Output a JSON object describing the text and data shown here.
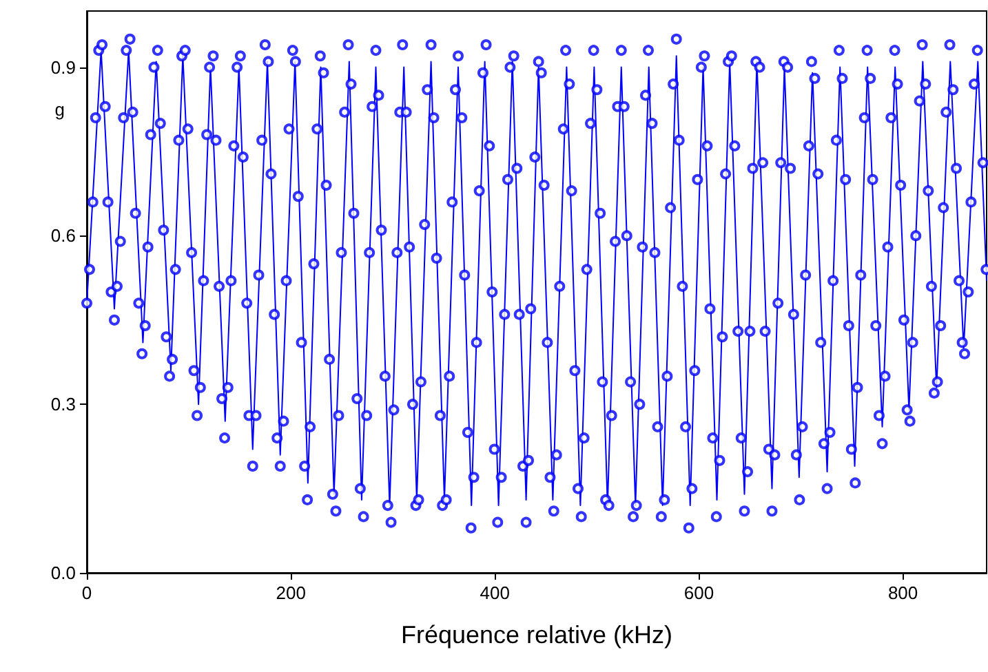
{
  "chart_data": {
    "type": "scatter",
    "xlabel": "Fréquence relative (kHz)",
    "ylabel": "g",
    "xlim": [
      0,
      882
    ],
    "xticks": [
      0,
      200,
      400,
      600,
      800
    ],
    "ylim": [
      0,
      1.0
    ],
    "yticks": [
      {
        "value": 0,
        "label": "0.0"
      },
      0.3,
      0.6,
      0.9
    ],
    "grid": false,
    "series": [
      {
        "type": "scatter",
        "color": "#0000ff",
        "marker": "circle",
        "x": [
          0,
          2.7,
          5.9,
          8.6,
          11.7,
          14.9,
          18.0,
          20.7,
          23.9,
          27.0,
          29.7,
          32.9,
          36.0,
          38.7,
          42.3,
          45.0,
          47.7,
          50.9,
          54.1,
          57.2,
          59.9,
          62.6,
          65.8,
          69.4,
          72.1,
          75.2,
          77.9,
          81.1,
          83.8,
          86.9,
          90.1,
          93.2,
          96.4,
          99.1,
          102.7,
          105.0,
          108.1,
          111.3,
          114.4,
          117.6,
          120.3,
          123.9,
          126.6,
          129.7,
          132.4,
          135.1,
          138.3,
          141.4,
          144.1,
          147.3,
          150.5,
          153.2,
          156.8,
          159.0,
          162.6,
          165.8,
          168.5,
          171.6,
          174.8,
          177.9,
          180.6,
          183.8,
          186.5,
          189.6,
          192.8,
          195.5,
          198.2,
          201.8,
          204.5,
          207.2,
          210.4,
          213.5,
          216.2,
          218.9,
          222.5,
          225.7,
          228.8,
          232.0,
          234.7,
          237.8,
          241.0,
          244.1,
          246.8,
          249.5,
          252.7,
          256.3,
          259.0,
          261.7,
          264.9,
          268.0,
          271.2,
          274.3,
          277.0,
          279.7,
          283.3,
          286.0,
          288.7,
          292.3,
          295.0,
          298.2,
          300.9,
          304.1,
          306.8,
          309.5,
          313.1,
          316.2,
          319.4,
          322.5,
          325.2,
          327.5,
          331.1,
          333.8,
          337.4,
          340.1,
          342.8,
          346.4,
          348.6,
          352.3,
          355.4,
          358.1,
          361.3,
          364.0,
          367.6,
          370.3,
          373.4,
          376.6,
          379.3,
          382.0,
          384.7,
          388.3,
          391.4,
          394.6,
          397.3,
          399.5,
          402.7,
          406.3,
          409.5,
          412.6,
          414.9,
          418.5,
          421.6,
          423.9,
          427.5,
          430.6,
          432.9,
          435.1,
          439.2,
          442.8,
          445.5,
          448.2,
          451.4,
          454.1,
          457.7,
          460.4,
          463.5,
          467.1,
          469.4,
          473.0,
          475.2,
          478.4,
          481.5,
          484.7,
          487.4,
          490.1,
          493.7,
          496.8,
          500.0,
          503.2,
          505.4,
          508.6,
          511.7,
          514.4,
          518.0,
          520.3,
          523.9,
          526.6,
          529.3,
          532.9,
          535.6,
          538.7,
          541.9,
          544.6,
          547.7,
          550.4,
          554.1,
          556.8,
          559.5,
          563.1,
          566.2,
          568.9,
          572.1,
          574.8,
          577.9,
          580.6,
          583.8,
          586.9,
          590.1,
          593.2,
          595.9,
          598.6,
          602.3,
          605.4,
          608.1,
          610.8,
          613.5,
          617.1,
          620.3,
          623.0,
          626.1,
          628.8,
          632.0,
          635.1,
          638.3,
          641.4,
          644.6,
          647.7,
          650.0,
          652.7,
          655.9,
          659.5,
          662.6,
          664.9,
          668.5,
          671.6,
          674.3,
          677.5,
          680.2,
          683.3,
          686.9,
          689.6,
          692.8,
          695.5,
          698.6,
          701.4,
          704.5,
          707.7,
          710.4,
          713.5,
          716.7,
          719.4,
          722.5,
          725.7,
          728.4,
          731.5,
          734.7,
          737.4,
          740.5,
          743.7,
          746.8,
          749.5,
          753.2,
          755.4,
          758.6,
          762.2,
          764.9,
          768.0,
          770.3,
          773.4,
          776.6,
          779.7,
          782.4,
          785.1,
          788.3,
          791.9,
          794.6,
          797.7,
          800.9,
          804.1,
          806.8,
          809.5,
          812.6,
          816.2,
          818.9,
          822.1,
          824.8,
          827.9,
          830.6,
          833.8,
          836.9,
          839.6,
          842.3,
          845.9,
          849.1,
          852.3,
          855.0,
          858.1,
          860.4,
          864.0,
          866.7,
          869.8,
          873.0,
          878.4,
          881.5
        ],
        "values": [
          0.48,
          0.54,
          0.66,
          0.81,
          0.93,
          0.94,
          0.83,
          0.66,
          0.5,
          0.45,
          0.51,
          0.59,
          0.81,
          0.93,
          0.95,
          0.82,
          0.64,
          0.48,
          0.39,
          0.44,
          0.58,
          0.78,
          0.9,
          0.93,
          0.8,
          0.61,
          0.42,
          0.35,
          0.38,
          0.54,
          0.77,
          0.92,
          0.93,
          0.79,
          0.57,
          0.36,
          0.28,
          0.33,
          0.52,
          0.78,
          0.9,
          0.92,
          0.77,
          0.51,
          0.31,
          0.24,
          0.33,
          0.52,
          0.76,
          0.9,
          0.92,
          0.74,
          0.48,
          0.28,
          0.19,
          0.28,
          0.53,
          0.77,
          0.94,
          0.91,
          0.71,
          0.46,
          0.24,
          0.19,
          0.27,
          0.52,
          0.79,
          0.93,
          0.91,
          0.67,
          0.41,
          0.19,
          0.13,
          0.26,
          0.55,
          0.79,
          0.92,
          0.89,
          0.69,
          0.38,
          0.14,
          0.11,
          0.28,
          0.57,
          0.82,
          0.94,
          0.87,
          0.64,
          0.31,
          0.15,
          0.1,
          0.28,
          0.57,
          0.83,
          0.93,
          0.85,
          0.61,
          0.35,
          0.12,
          0.09,
          0.29,
          0.57,
          0.82,
          0.94,
          0.82,
          0.58,
          0.3,
          0.12,
          0.13,
          0.34,
          0.62,
          0.86,
          0.94,
          0.81,
          0.56,
          0.28,
          0.12,
          0.13,
          0.35,
          0.66,
          0.86,
          0.92,
          0.81,
          0.53,
          0.25,
          0.08,
          0.17,
          0.41,
          0.68,
          0.89,
          0.94,
          0.76,
          0.5,
          0.22,
          0.09,
          0.17,
          0.46,
          0.7,
          0.9,
          0.92,
          0.72,
          0.46,
          0.19,
          0.09,
          0.2,
          0.47,
          0.74,
          0.91,
          0.89,
          0.69,
          0.41,
          0.17,
          0.11,
          0.21,
          0.51,
          0.79,
          0.93,
          0.87,
          0.68,
          0.36,
          0.15,
          0.1,
          0.24,
          0.54,
          0.8,
          0.93,
          0.86,
          0.64,
          0.34,
          0.13,
          0.12,
          0.28,
          0.59,
          0.83,
          0.93,
          0.83,
          0.6,
          0.34,
          0.1,
          0.12,
          0.3,
          0.58,
          0.85,
          0.93,
          0.8,
          0.57,
          0.26,
          0.1,
          0.13,
          0.35,
          0.65,
          0.87,
          0.95,
          0.77,
          0.51,
          0.26,
          0.08,
          0.15,
          0.36,
          0.7,
          0.9,
          0.92,
          0.76,
          0.47,
          0.24,
          0.1,
          0.2,
          0.42,
          0.71,
          0.91,
          0.92,
          0.76,
          0.43,
          0.24,
          0.11,
          0.18,
          0.43,
          0.72,
          0.91,
          0.9,
          0.73,
          0.43,
          0.22,
          0.11,
          0.21,
          0.48,
          0.73,
          0.91,
          0.9,
          0.72,
          0.46,
          0.21,
          0.13,
          0.26,
          0.53,
          0.76,
          0.91,
          0.88,
          0.71,
          0.41,
          0.23,
          0.15,
          0.25,
          0.52,
          0.77,
          0.93,
          0.88,
          0.7,
          0.44,
          0.22,
          0.16,
          0.33,
          0.53,
          0.81,
          0.93,
          0.88,
          0.7,
          0.44,
          0.28,
          0.23,
          0.35,
          0.58,
          0.81,
          0.93,
          0.87,
          0.69,
          0.45,
          0.29,
          0.27,
          0.41,
          0.6,
          0.84,
          0.94,
          0.87,
          0.68,
          0.51,
          0.32,
          0.34,
          0.44,
          0.65,
          0.82,
          0.94,
          0.86,
          0.72,
          0.52,
          0.41,
          0.39,
          0.5,
          0.66,
          0.87,
          0.93,
          0.73,
          0.54
        ]
      },
      {
        "type": "line",
        "color": "#0000ff",
        "marker": "none",
        "line_style": "solid",
        "x": [
          0,
          14.0,
          27.0,
          41.0,
          55.0,
          68.0,
          82.4,
          94.1,
          109.5,
          121.2,
          135.6,
          149.1,
          162.6,
          177.0,
          189.6,
          204.1,
          216.7,
          229.3,
          242.3,
          257.2,
          269.4,
          283.3,
          296.8,
          310.8,
          323.4,
          337.4,
          350.5,
          364.0,
          377.0,
          390.1,
          403.6,
          417.1,
          430.6,
          442.8,
          456.8,
          470.3,
          483.8,
          497.3,
          510.4,
          523.9,
          537.8,
          550.9,
          564.4,
          577.9,
          591.4,
          604.1,
          617.6,
          630.2,
          644.6,
          656.8,
          671.6,
          683.8,
          698.2,
          711.3,
          725.7,
          738.3,
          752.7,
          765.3,
          779.7,
          792.3,
          805.9,
          819.4,
          832.9,
          846.4,
          859.5,
          873.4,
          882
        ],
        "values": [
          0.48,
          0.93,
          0.47,
          0.93,
          0.41,
          0.91,
          0.36,
          0.92,
          0.3,
          0.9,
          0.27,
          0.9,
          0.22,
          0.91,
          0.21,
          0.91,
          0.16,
          0.9,
          0.14,
          0.91,
          0.13,
          0.9,
          0.12,
          0.9,
          0.13,
          0.91,
          0.13,
          0.9,
          0.12,
          0.91,
          0.12,
          0.91,
          0.13,
          0.9,
          0.13,
          0.9,
          0.12,
          0.9,
          0.12,
          0.9,
          0.12,
          0.9,
          0.12,
          0.92,
          0.12,
          0.9,
          0.13,
          0.91,
          0.14,
          0.91,
          0.15,
          0.9,
          0.17,
          0.89,
          0.18,
          0.9,
          0.19,
          0.9,
          0.26,
          0.9,
          0.29,
          0.91,
          0.33,
          0.91,
          0.4,
          0.91,
          0.52
        ]
      }
    ]
  }
}
